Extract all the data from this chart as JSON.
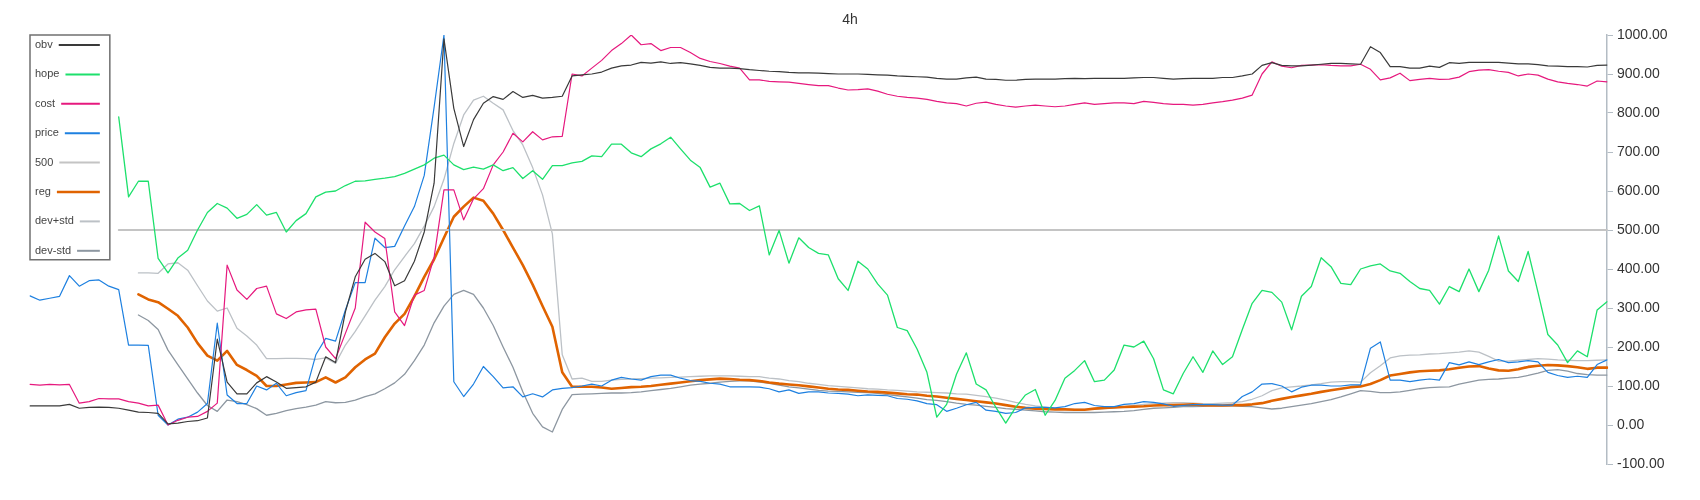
{
  "chart_data": {
    "type": "line",
    "title": "4h",
    "categories": [
      null,
      null,
      null,
      null,
      null,
      null,
      null,
      null,
      null,
      null,
      null,
      null,
      null,
      null,
      null,
      null,
      null,
      null,
      null,
      null,
      null,
      null,
      null,
      null,
      null,
      null,
      null,
      null,
      null,
      null,
      null,
      null,
      null,
      null,
      null,
      null,
      null,
      null,
      null,
      null,
      null,
      null,
      null,
      null,
      null,
      null,
      null,
      null,
      null,
      null,
      null,
      null,
      null,
      null,
      null,
      null,
      null,
      null,
      null,
      null,
      null,
      null,
      null,
      null,
      null,
      null,
      null,
      null,
      null,
      null,
      null,
      null,
      null,
      null,
      null,
      null,
      null,
      null,
      null,
      null,
      null,
      null,
      null,
      null,
      null,
      null,
      null,
      null,
      null,
      null,
      null,
      null,
      null,
      null,
      null,
      null,
      null,
      null,
      null,
      null,
      null,
      null,
      null,
      null,
      null,
      null,
      null,
      null,
      null,
      null,
      null,
      null,
      null,
      null,
      null,
      null,
      null,
      null,
      null,
      null,
      null,
      null,
      null,
      null,
      null,
      null,
      null,
      null,
      null,
      null,
      null,
      null,
      null,
      null,
      null,
      null,
      null,
      null,
      null,
      null,
      null,
      null,
      null,
      null,
      null,
      null,
      null,
      null,
      null,
      null,
      null,
      null,
      null,
      null,
      null,
      null,
      null,
      null,
      null,
      null,
      null
    ],
    "series": [
      {
        "name": "obv",
        "color": "#3a3a3a",
        "values": [
          49,
          49,
          49,
          49,
          53,
          43,
          45,
          46,
          45,
          43,
          38,
          33,
          32,
          30,
          3,
          5,
          9,
          11,
          18,
          220,
          110,
          80,
          80,
          108,
          124,
          110,
          94,
          96,
          98,
          110,
          175,
          160,
          290,
          380,
          425,
          440,
          419,
          357,
          370,
          420,
          495,
          620,
          990,
          812,
          714,
          783,
          825,
          842,
          835,
          855,
          840,
          845,
          838,
          840,
          843,
          895,
          898,
          900,
          905,
          915,
          921,
          923,
          930,
          928,
          931,
          927,
          929,
          926,
          922,
          917,
          915,
          915,
          914,
          911,
          909,
          907,
          906,
          904,
          903,
          903,
          902,
          901,
          900,
          900,
          900,
          899,
          898,
          897,
          895,
          894,
          893,
          892,
          889,
          887,
          887,
          890,
          892,
          887,
          886,
          884,
          884,
          886,
          887,
          887,
          887,
          888,
          889,
          888,
          889,
          889,
          889,
          889,
          890,
          891,
          891,
          889,
          887,
          888,
          889,
          889,
          889,
          891,
          891,
          895,
          900,
          922,
          929,
          922,
          921,
          921,
          923,
          925,
          927,
          927,
          926,
          925,
          970,
          955,
          919,
          919,
          915,
          915,
          920,
          917,
          929,
          927,
          930,
          930,
          930,
          930,
          928,
          926,
          926,
          924,
          921,
          920,
          919,
          919,
          918,
          922,
          923
        ]
      },
      {
        "name": "hope",
        "color": "#1de06c",
        "values": [
          null,
          null,
          null,
          null,
          null,
          null,
          null,
          null,
          null,
          790,
          585,
          625,
          625,
          427,
          390,
          428,
          448,
          500,
          545,
          568,
          556,
          530,
          540,
          565,
          538,
          545,
          495,
          524,
          542,
          585,
          597,
          600,
          614,
          625,
          626,
          630,
          633,
          637,
          645,
          656,
          667,
          684,
          692,
          667,
          655,
          661,
          656,
          667,
          652,
          660,
          632,
          652,
          630,
          665,
          665,
          672,
          676,
          690,
          688,
          720,
          720,
          698,
          688,
          708,
          721,
          738,
          708,
          679,
          660,
          610,
          620,
          567,
          568,
          550,
          562,
          436,
          499,
          415,
          480,
          455,
          440,
          436,
          375,
          345,
          420,
          400,
          362,
          333,
          250,
          242,
          195,
          135,
          20,
          53,
          130,
          185,
          105,
          90,
          45,
          5,
          45,
          77,
          91,
          25,
          63,
          120,
          140,
          165,
          111,
          115,
          141,
          205,
          200,
          215,
          170,
          90,
          80,
          132,
          175,
          135,
          190,
          155,
          175,
          245,
          312,
          345,
          340,
          315,
          244,
          330,
          355,
          429,
          406,
          363,
          360,
          400,
          408,
          413,
          395,
          389,
          368,
          350,
          345,
          310,
          355,
          342,
          400,
          342,
          397,
          485,
          395,
          368,
          445,
          340,
          232,
          205,
          160,
          190,
          175,
          295,
          316
        ]
      },
      {
        "name": "cost",
        "color": "#e6197e",
        "values": [
          104,
          102,
          104,
          103,
          104,
          56,
          60,
          68,
          67,
          67,
          60,
          56,
          49,
          51,
          0,
          12,
          20,
          22,
          35,
          56,
          410,
          346,
          322,
          350,
          356,
          285,
          273,
          290,
          295,
          297,
          200,
          170,
          235,
          300,
          520,
          495,
          478,
          290,
          255,
          333,
          345,
          430,
          603,
          603,
          526,
          580,
          606,
          667,
          700,
          748,
          726,
          752,
          731,
          739,
          740,
          900,
          895,
          915,
          935,
          960,
          978,
          1000,
          975,
          978,
          960,
          968,
          968,
          955,
          940,
          932,
          927,
          920,
          915,
          885,
          885,
          881,
          880,
          879,
          876,
          873,
          870,
          870,
          864,
          859,
          860,
          862,
          856,
          848,
          843,
          840,
          838,
          835,
          830,
          826,
          824,
          818,
          825,
          828,
          822,
          818,
          815,
          818,
          820,
          818,
          816,
          818,
          822,
          826,
          822,
          824,
          826,
          826,
          824,
          830,
          827,
          824,
          822,
          822,
          820,
          822,
          826,
          829,
          833,
          838,
          846,
          900,
          931,
          920,
          916,
          922,
          923,
          924,
          922,
          921,
          921,
          925,
          912,
          885,
          890,
          902,
          883,
          886,
          889,
          886,
          887,
          892,
          906,
          910,
          911,
          907,
          904,
          895,
          900,
          897,
          887,
          880,
          876,
          873,
          869,
          882,
          880
        ]
      },
      {
        "name": "price",
        "color": "#1e80e0",
        "values": [
          331,
          320,
          325,
          330,
          383,
          356,
          370,
          372,
          356,
          347,
          205,
          205,
          204,
          25,
          0,
          15,
          20,
          33,
          55,
          261,
          77,
          55,
          55,
          100,
          90,
          107,
          75,
          83,
          88,
          180,
          222,
          215,
          295,
          365,
          365,
          479,
          455,
          458,
          510,
          560,
          640,
          815,
          1000,
          111,
          73,
          105,
          150,
          124,
          95,
          98,
          72,
          80,
          72,
          90,
          94,
          96,
          100,
          105,
          100,
          115,
          122,
          118,
          115,
          124,
          128,
          128,
          120,
          114,
          112,
          107,
          105,
          98,
          98,
          98,
          97,
          93,
          85,
          90,
          81,
          85,
          85,
          82,
          81,
          79,
          75,
          77,
          76,
          75,
          68,
          66,
          62,
          55,
          52,
          35,
          43,
          52,
          58,
          38,
          35,
          30,
          32,
          44,
          45,
          45,
          44,
          47,
          55,
          58,
          50,
          47,
          47,
          53,
          55,
          60,
          58,
          54,
          48,
          50,
          52,
          52,
          52,
          51,
          51,
          73,
          85,
          105,
          106,
          100,
          85,
          97,
          102,
          102,
          100,
          100,
          103,
          103,
          197,
          213,
          115,
          115,
          111,
          115,
          118,
          115,
          160,
          154,
          162,
          155,
          162,
          168,
          160,
          162,
          165,
          162,
          135,
          127,
          122,
          125,
          122,
          155,
          167
        ]
      },
      {
        "name": "500",
        "color": "#c4c4c4",
        "values": [
          null,
          null,
          null,
          null,
          null,
          null,
          null,
          null,
          null,
          500,
          500,
          500,
          500,
          500,
          500,
          500,
          500,
          500,
          500,
          500,
          500,
          500,
          500,
          500,
          500,
          500,
          500,
          500,
          500,
          500,
          500,
          500,
          500,
          500,
          500,
          500,
          500,
          500,
          500,
          500,
          500,
          500,
          500,
          500,
          500,
          500,
          500,
          500,
          500,
          500,
          500,
          500,
          500,
          500,
          500,
          500,
          500,
          500,
          500,
          500,
          500,
          500,
          500,
          500,
          500,
          500,
          500,
          500,
          500,
          500,
          500,
          500,
          500,
          500,
          500,
          500,
          500,
          500,
          500,
          500,
          500,
          500,
          500,
          500,
          500,
          500,
          500,
          500,
          500,
          500,
          500,
          500,
          500,
          500,
          500,
          500,
          500,
          500,
          500,
          500,
          500,
          500,
          500,
          500,
          500,
          500,
          500,
          500,
          500,
          500,
          500,
          500,
          500,
          500,
          500,
          500,
          500,
          500,
          500,
          500,
          500,
          500,
          500,
          500,
          500,
          500,
          500,
          500,
          500,
          500,
          500,
          500,
          500,
          500,
          500,
          500,
          500,
          500,
          500,
          500,
          500,
          500,
          500,
          500,
          500,
          500,
          500,
          500,
          500,
          500,
          500,
          500,
          500,
          500,
          500,
          500,
          500,
          500,
          500,
          500,
          500
        ]
      },
      {
        "name": "reg",
        "color": "#e06300",
        "values": [
          null,
          null,
          null,
          null,
          null,
          null,
          null,
          null,
          null,
          null,
          null,
          335,
          322,
          315,
          298,
          280,
          250,
          210,
          178,
          165,
          190,
          154,
          141,
          126,
          100,
          100,
          104,
          108,
          109,
          110,
          122,
          109,
          122,
          148,
          168,
          183,
          225,
          260,
          285,
          330,
          380,
          425,
          480,
          534,
          560,
          583,
          575,
          542,
          500,
          455,
          410,
          360,
          305,
          252,
          135,
          98,
          98,
          98,
          96,
          93,
          95,
          97,
          98,
          100,
          103,
          106,
          109,
          112,
          115,
          117,
          119,
          118,
          116,
          115,
          113,
          109,
          106,
          104,
          102,
          99,
          96,
          93,
          91,
          90,
          88,
          86,
          85,
          83,
          81,
          79,
          78,
          75,
          73,
          70,
          67,
          64,
          61,
          58,
          55,
          51,
          47,
          44,
          42,
          41,
          40,
          40,
          39,
          39,
          42,
          44,
          45,
          46,
          47,
          48,
          50,
          51,
          51,
          52,
          53,
          51,
          50,
          50,
          51,
          51,
          53,
          56,
          62,
          67,
          72,
          76,
          80,
          85,
          89,
          93,
          97,
          99,
          105,
          115,
          127,
          131,
          135,
          138,
          139,
          140,
          143,
          147,
          150,
          151,
          145,
          140,
          139,
          143,
          149,
          152,
          154,
          153,
          151,
          148,
          144,
          147,
          147
        ]
      },
      {
        "name": "dev+std",
        "color": "#bcc1c6",
        "values": [
          null,
          null,
          null,
          null,
          null,
          null,
          null,
          null,
          null,
          null,
          null,
          390,
          390,
          389,
          413,
          416,
          397,
          357,
          318,
          292,
          300,
          248,
          228,
          205,
          170,
          170,
          171,
          171,
          170,
          168,
          172,
          158,
          205,
          240,
          280,
          320,
          355,
          398,
          432,
          465,
          510,
          560,
          630,
          722,
          795,
          833,
          843,
          825,
          808,
          755,
          718,
          660,
          590,
          490,
          180,
          118,
          120,
          112,
          112,
          115,
          117,
          118,
          119,
          120,
          121,
          122,
          123,
          124,
          125,
          126,
          126,
          126,
          125,
          124,
          124,
          120,
          118,
          114,
          111,
          107,
          104,
          101,
          99,
          97,
          95,
          93,
          92,
          90,
          89,
          87,
          85,
          84,
          83,
          82,
          80,
          79,
          76,
          73,
          69,
          64,
          58,
          53,
          49,
          46,
          43,
          41,
          40,
          40,
          40,
          42,
          44,
          47,
          50,
          53,
          55,
          56,
          57,
          57,
          56,
          55,
          55,
          56,
          57,
          60,
          66,
          75,
          88,
          95,
          98,
          100,
          103,
          106,
          110,
          111,
          111,
          110,
          134,
          152,
          172,
          177,
          179,
          180,
          182,
          183,
          185,
          187,
          190,
          187,
          176,
          164,
          164,
          166,
          168,
          170,
          169,
          167,
          166,
          165,
          165,
          166,
          167
        ]
      },
      {
        "name": "dev-std",
        "color": "#8d97a1",
        "values": [
          null,
          null,
          null,
          null,
          null,
          null,
          null,
          null,
          null,
          null,
          null,
          282,
          268,
          245,
          192,
          155,
          118,
          82,
          50,
          35,
          64,
          60,
          52,
          42,
          25,
          30,
          37,
          42,
          46,
          51,
          60,
          57,
          58,
          64,
          73,
          80,
          93,
          108,
          130,
          165,
          205,
          262,
          305,
          335,
          345,
          335,
          300,
          255,
          200,
          148,
          85,
          30,
          -5,
          -18,
          40,
          78,
          79,
          80,
          81,
          82,
          82,
          83,
          85,
          88,
          91,
          94,
          98,
          102,
          105,
          107,
          110,
          112,
          113,
          113,
          110,
          107,
          102,
          98,
          95,
          92,
          89,
          87,
          86,
          85,
          84,
          83,
          81,
          78,
          75,
          72,
          69,
          65,
          63,
          60,
          56,
          53,
          51,
          48,
          45,
          42,
          40,
          38,
          36,
          34,
          33,
          32,
          32,
          32,
          32,
          33,
          34,
          35,
          37,
          40,
          43,
          44,
          45,
          47,
          47,
          48,
          49,
          49,
          49,
          48,
          47,
          44,
          41,
          43,
          47,
          51,
          55,
          60,
          65,
          72,
          80,
          88,
          86,
          83,
          83,
          85,
          89,
          93,
          96,
          97,
          98,
          105,
          110,
          115,
          117,
          118,
          120,
          122,
          127,
          133,
          140,
          142,
          138,
          132,
          129,
          128,
          128
        ]
      }
    ],
    "ylim": [
      -100,
      1000
    ],
    "yticks": [
      {
        "value": -100,
        "label": "-100.00"
      },
      {
        "value": 0,
        "label": "0.00"
      },
      {
        "value": 100,
        "label": "100.00"
      },
      {
        "value": 200,
        "label": "200.00"
      },
      {
        "value": 300,
        "label": "300.00"
      },
      {
        "value": 400,
        "label": "400.00"
      },
      {
        "value": 500,
        "label": "500.00"
      },
      {
        "value": 600,
        "label": "600.00"
      },
      {
        "value": 700,
        "label": "700.00"
      },
      {
        "value": 800,
        "label": "800.00"
      },
      {
        "value": 900,
        "label": "900.00"
      },
      {
        "value": 1000,
        "label": "1000.00"
      }
    ],
    "legend": "top left"
  }
}
